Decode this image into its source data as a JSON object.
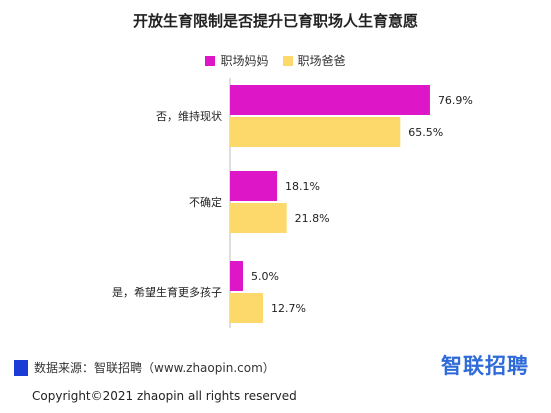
{
  "chart_data": {
    "type": "bar",
    "orientation": "horizontal",
    "title": "开放生育限制是否提升已育职场人生育意愿",
    "categories": [
      "否，维持现状",
      "不确定",
      "是，希望生育更多孩子"
    ],
    "series": [
      {
        "name": "职场妈妈",
        "values": [
          76.9,
          18.1,
          5.0
        ],
        "labels": [
          "76.9%",
          "18.1%",
          "5.0%"
        ],
        "color": "#dd16c8"
      },
      {
        "name": "职场爸爸",
        "values": [
          65.5,
          21.8,
          12.7
        ],
        "labels": [
          "65.5%",
          "21.8%",
          "12.7%"
        ],
        "color": "#fcd96a"
      }
    ],
    "xlim": [
      0,
      100
    ],
    "grid": false,
    "legend": "top-center"
  },
  "footer": {
    "source": "数据来源：智联招聘（www.zhaopin.com）",
    "brand": "智联招聘",
    "copyright": "Copyright©2021 zhaopin all rights reserved"
  },
  "colors": {
    "source_mark": "#1a3bd6",
    "brand": "#2f6bd8",
    "axis": "#bdbdbd"
  }
}
